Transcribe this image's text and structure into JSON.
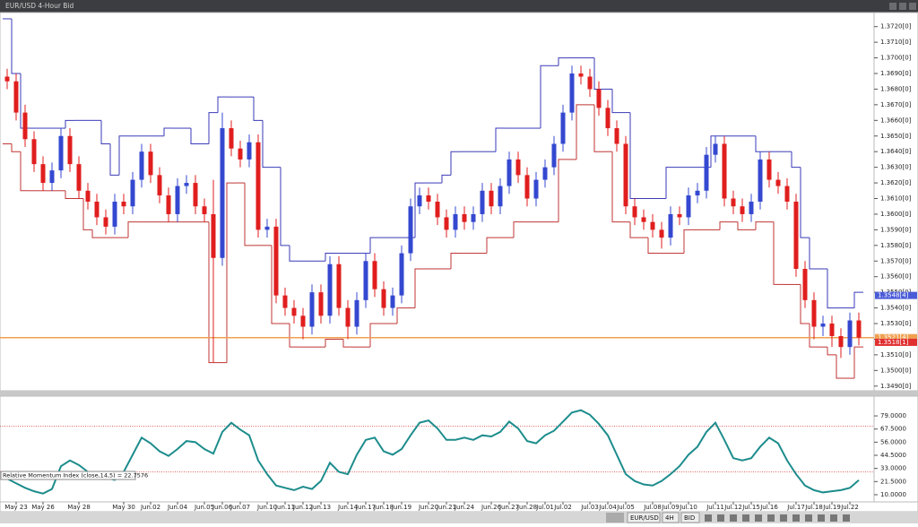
{
  "window_title": "EUR/USD 4-Hour Bid",
  "toolbar": [
    "EUR/USD",
    "4H",
    "BID"
  ],
  "chart_data": [
    {
      "type": "candlestick",
      "categories": [
        null,
        "May 23",
        null,
        null,
        "May 26",
        null,
        null,
        null,
        "May 28",
        null,
        null,
        null,
        null,
        "May 30",
        null,
        null,
        "Jun.02",
        null,
        null,
        "Jun.04",
        null,
        null,
        "Jun.05",
        null,
        "Jun.06",
        null,
        "Jun.07",
        null,
        null,
        "Jun.10",
        null,
        "Jun.11",
        null,
        "Jun.12",
        null,
        "Jun.13",
        null,
        null,
        "Jun.14",
        null,
        "Jun.17",
        null,
        "Jun.18",
        null,
        "Jun.19",
        null,
        null,
        "Jun.20",
        null,
        "Jun.21",
        null,
        "Jun.24",
        null,
        null,
        "Jun.26",
        null,
        "Jun.27",
        null,
        "Jun.28",
        null,
        "Jul.01",
        null,
        "Jul.02",
        null,
        null,
        "Jul.03",
        null,
        "Jul.04",
        null,
        "Jul.05",
        null,
        null,
        "Jul.08",
        null,
        "Jul.09",
        null,
        "Jul.10",
        null,
        null,
        "Jul.11",
        null,
        "Jul.12",
        null,
        "Jul.15",
        null,
        "Jul.16",
        null,
        null,
        "Jul.17",
        null,
        "Jul.18",
        null,
        "Jul.19",
        null,
        "Jul.22",
        null
      ],
      "open": [
        1.3688,
        1.3685,
        1.3665,
        1.3648,
        1.3632,
        1.362,
        1.3628,
        1.365,
        1.3632,
        1.3615,
        1.3608,
        1.3598,
        1.3592,
        1.3608,
        1.3605,
        1.3622,
        1.364,
        1.3625,
        1.3612,
        1.36,
        1.3618,
        1.362,
        1.3605,
        1.36,
        1.3572,
        1.3655,
        1.3642,
        1.3635,
        1.3646,
        1.359,
        1.3592,
        1.3548,
        1.354,
        1.3535,
        1.3528,
        1.355,
        1.3535,
        1.3568,
        1.354,
        1.3528,
        1.3545,
        1.357,
        1.3552,
        1.354,
        1.3548,
        1.3575,
        1.3605,
        1.3612,
        1.3608,
        1.3598,
        1.359,
        1.36,
        1.3595,
        1.36,
        1.3615,
        1.3605,
        1.3618,
        1.3635,
        1.3625,
        1.361,
        1.3622,
        1.363,
        1.3645,
        1.3665,
        1.369,
        1.3688,
        1.368,
        1.3668,
        1.3655,
        1.3645,
        1.3605,
        1.3598,
        1.3595,
        1.359,
        1.3585,
        1.36,
        1.3598,
        1.3612,
        1.3615,
        1.3638,
        1.3645,
        1.361,
        1.3605,
        1.36,
        1.3608,
        1.3635,
        1.3622,
        1.3618,
        1.3608,
        1.3565,
        1.3545,
        1.3528,
        1.353,
        1.3522,
        1.3515,
        1.3532
      ],
      "high": [
        1.3693,
        1.369,
        1.367,
        1.3653,
        1.3637,
        1.3633,
        1.3655,
        1.3655,
        1.3637,
        1.362,
        1.3613,
        1.3603,
        1.3613,
        1.3613,
        1.3627,
        1.3645,
        1.3645,
        1.363,
        1.3617,
        1.3623,
        1.3625,
        1.3625,
        1.361,
        1.3622,
        1.3665,
        1.366,
        1.3647,
        1.3651,
        1.3651,
        1.3597,
        1.3597,
        1.3553,
        1.3545,
        1.354,
        1.3555,
        1.3555,
        1.3573,
        1.3573,
        1.3545,
        1.355,
        1.3575,
        1.3575,
        1.3557,
        1.3553,
        1.358,
        1.361,
        1.3617,
        1.3617,
        1.3613,
        1.3603,
        1.3605,
        1.3605,
        1.3605,
        1.362,
        1.362,
        1.3623,
        1.364,
        1.364,
        1.363,
        1.3627,
        1.3635,
        1.365,
        1.367,
        1.3695,
        1.3695,
        1.3693,
        1.3685,
        1.3673,
        1.366,
        1.365,
        1.361,
        1.3603,
        1.36,
        1.3595,
        1.3605,
        1.3605,
        1.3617,
        1.362,
        1.3643,
        1.365,
        1.365,
        1.3615,
        1.361,
        1.3613,
        1.364,
        1.364,
        1.3627,
        1.3623,
        1.3613,
        1.357,
        1.355,
        1.3535,
        1.3535,
        1.3527,
        1.3537,
        1.3537
      ],
      "low": [
        1.368,
        1.366,
        1.3643,
        1.3627,
        1.3615,
        1.3615,
        1.3623,
        1.3627,
        1.361,
        1.3603,
        1.3593,
        1.3587,
        1.3587,
        1.36,
        1.36,
        1.3617,
        1.362,
        1.3607,
        1.3595,
        1.3595,
        1.3613,
        1.36,
        1.3595,
        1.3505,
        1.3567,
        1.3637,
        1.363,
        1.363,
        1.3585,
        1.3585,
        1.3543,
        1.3535,
        1.353,
        1.352,
        1.3523,
        1.353,
        1.353,
        1.3535,
        1.352,
        1.3523,
        1.354,
        1.3547,
        1.3535,
        1.3535,
        1.3543,
        1.357,
        1.36,
        1.3603,
        1.3593,
        1.3585,
        1.3585,
        1.359,
        1.359,
        1.3595,
        1.36,
        1.36,
        1.3613,
        1.362,
        1.3605,
        1.3605,
        1.3617,
        1.3625,
        1.364,
        1.366,
        1.3683,
        1.3675,
        1.3663,
        1.365,
        1.364,
        1.36,
        1.3593,
        1.359,
        1.3585,
        1.3578,
        1.358,
        1.3593,
        1.3593,
        1.3607,
        1.361,
        1.3633,
        1.3605,
        1.36,
        1.3595,
        1.3595,
        1.3603,
        1.3617,
        1.3613,
        1.3603,
        1.356,
        1.354,
        1.352,
        1.3522,
        1.3515,
        1.3508,
        1.351,
        1.3516
      ],
      "close": [
        1.3685,
        1.3665,
        1.3648,
        1.3632,
        1.362,
        1.3628,
        1.365,
        1.3632,
        1.3615,
        1.3608,
        1.3598,
        1.3592,
        1.3608,
        1.3605,
        1.3622,
        1.364,
        1.3625,
        1.3612,
        1.36,
        1.3618,
        1.362,
        1.3605,
        1.36,
        1.3572,
        1.3655,
        1.3642,
        1.3635,
        1.3646,
        1.359,
        1.3592,
        1.3548,
        1.354,
        1.3535,
        1.3528,
        1.355,
        1.3535,
        1.3568,
        1.354,
        1.3528,
        1.3545,
        1.357,
        1.3552,
        1.354,
        1.3548,
        1.3575,
        1.3605,
        1.3612,
        1.3608,
        1.3598,
        1.359,
        1.36,
        1.3595,
        1.36,
        1.3615,
        1.3605,
        1.3618,
        1.3635,
        1.3625,
        1.361,
        1.3622,
        1.363,
        1.3645,
        1.3665,
        1.369,
        1.3688,
        1.368,
        1.3668,
        1.3655,
        1.3645,
        1.3605,
        1.3598,
        1.3595,
        1.359,
        1.3585,
        1.36,
        1.3598,
        1.3612,
        1.3615,
        1.3638,
        1.3645,
        1.361,
        1.3605,
        1.36,
        1.3608,
        1.3635,
        1.3622,
        1.3618,
        1.3608,
        1.3565,
        1.3545,
        1.3528,
        1.353,
        1.3522,
        1.3515,
        1.3532,
        1.3521
      ],
      "up_color": "#3448d0",
      "down_color": "#e01e1e",
      "channel": {
        "upper": [
          1.3725,
          1.369,
          1.3655,
          1.3655,
          1.3655,
          1.3655,
          1.3655,
          1.366,
          1.366,
          1.366,
          1.366,
          1.3645,
          1.3625,
          1.365,
          1.365,
          1.365,
          1.365,
          1.365,
          1.3655,
          1.3655,
          1.3655,
          1.3645,
          1.3645,
          1.3665,
          1.3675,
          1.3675,
          1.3675,
          1.3675,
          1.366,
          1.363,
          1.363,
          1.358,
          1.357,
          1.357,
          1.357,
          1.357,
          1.3575,
          1.3575,
          1.3575,
          1.3575,
          1.3575,
          1.3585,
          1.3585,
          1.3585,
          1.3585,
          1.3585,
          1.362,
          1.362,
          1.362,
          1.3625,
          1.364,
          1.364,
          1.364,
          1.364,
          1.364,
          1.3655,
          1.3655,
          1.3655,
          1.3655,
          1.3655,
          1.3695,
          1.3695,
          1.37,
          1.37,
          1.37,
          1.37,
          1.368,
          1.368,
          1.3665,
          1.3665,
          1.361,
          1.361,
          1.361,
          1.361,
          1.363,
          1.363,
          1.363,
          1.363,
          1.363,
          1.365,
          1.365,
          1.365,
          1.365,
          1.365,
          1.364,
          1.364,
          1.364,
          1.364,
          1.363,
          1.3585,
          1.3565,
          1.3565,
          1.354,
          1.354,
          1.354,
          1.355
        ],
        "lower": [
          1.3645,
          1.364,
          1.3615,
          1.3615,
          1.3615,
          1.3615,
          1.3615,
          1.361,
          1.361,
          1.359,
          1.3585,
          1.3585,
          1.3585,
          1.3585,
          1.3595,
          1.3595,
          1.3595,
          1.3595,
          1.3595,
          1.3595,
          1.3595,
          1.3595,
          1.3595,
          1.3505,
          1.3505,
          1.362,
          1.362,
          1.358,
          1.358,
          1.358,
          1.353,
          1.353,
          1.3515,
          1.3515,
          1.3515,
          1.3515,
          1.352,
          1.352,
          1.3515,
          1.3515,
          1.3515,
          1.353,
          1.353,
          1.353,
          1.354,
          1.354,
          1.3565,
          1.3565,
          1.3565,
          1.3565,
          1.3575,
          1.3575,
          1.3575,
          1.3575,
          1.3585,
          1.3585,
          1.3585,
          1.3595,
          1.3595,
          1.3595,
          1.3595,
          1.3595,
          1.3635,
          1.3635,
          1.367,
          1.367,
          1.364,
          1.364,
          1.3595,
          1.3595,
          1.3585,
          1.3585,
          1.3575,
          1.3575,
          1.3575,
          1.3575,
          1.359,
          1.359,
          1.359,
          1.359,
          1.3595,
          1.3595,
          1.359,
          1.359,
          1.3595,
          1.3595,
          1.3555,
          1.3555,
          1.3555,
          1.353,
          1.3515,
          1.3515,
          1.351,
          1.3495,
          1.3495,
          1.3515
        ],
        "upper_color": "#3a3ab8",
        "lower_color": "#c03434"
      },
      "price_markers": [
        {
          "value": 1.3548,
          "label": "1.3548[4]",
          "color": "#4a5bd8"
        },
        {
          "value": 1.3521,
          "label": "1.3521[4]",
          "color": "#f0a050",
          "line": true
        },
        {
          "value": 1.3518,
          "label": "1.3518[1]",
          "color": "#e03030"
        }
      ],
      "ylim": [
        1.3487,
        1.3729
      ],
      "yticks": [
        {
          "value": 1.349,
          "label": "1.3490[0]"
        },
        {
          "value": 1.35,
          "label": "1.3500[0]"
        },
        {
          "value": 1.351,
          "label": "1.3510[0]"
        },
        {
          "value": 1.352,
          "label": "1.3520[0]"
        },
        {
          "value": 1.353,
          "label": "1.3530[0]"
        },
        {
          "value": 1.354,
          "label": "1.3540[0]"
        },
        {
          "value": 1.355,
          "label": "1.3550[0]"
        },
        {
          "value": 1.356,
          "label": "1.3560[0]"
        },
        {
          "value": 1.357,
          "label": "1.3570[0]"
        },
        {
          "value": 1.358,
          "label": "1.3580[0]"
        },
        {
          "value": 1.359,
          "label": "1.3590[0]"
        },
        {
          "value": 1.36,
          "label": "1.3600[0]"
        },
        {
          "value": 1.361,
          "label": "1.3610[0]"
        },
        {
          "value": 1.362,
          "label": "1.3620[0]"
        },
        {
          "value": 1.363,
          "label": "1.3630[0]"
        },
        {
          "value": 1.364,
          "label": "1.3640[0]"
        },
        {
          "value": 1.365,
          "label": "1.3650[0]"
        },
        {
          "value": 1.366,
          "label": "1.3660[0]"
        },
        {
          "value": 1.367,
          "label": "1.3670[0]"
        },
        {
          "value": 1.368,
          "label": "1.3680[0]"
        },
        {
          "value": 1.369,
          "label": "1.3690[0]"
        },
        {
          "value": 1.37,
          "label": "1.3700[0]"
        },
        {
          "value": 1.371,
          "label": "1.3710[0]"
        },
        {
          "value": 1.372,
          "label": "1.3720[0]"
        }
      ]
    },
    {
      "type": "line",
      "title": "Relative Momentum Index (close,14,5) = 22.7576",
      "values": [
        24,
        20,
        16,
        13,
        11,
        15,
        35,
        40,
        36,
        30,
        28,
        25,
        23,
        30,
        45,
        60,
        55,
        48,
        44,
        50,
        57,
        56,
        50,
        46,
        65,
        73,
        67,
        62,
        40,
        28,
        18,
        16,
        14,
        17,
        15,
        22,
        38,
        30,
        28,
        45,
        58,
        60,
        48,
        45,
        50,
        62,
        73,
        75,
        68,
        58,
        58,
        60,
        58,
        62,
        61,
        65,
        74,
        68,
        57,
        55,
        62,
        66,
        74,
        82,
        84,
        80,
        72,
        62,
        45,
        28,
        22,
        19,
        18,
        22,
        28,
        35,
        45,
        52,
        65,
        73,
        58,
        42,
        40,
        42,
        52,
        60,
        55,
        40,
        28,
        18,
        14,
        12,
        13,
        14,
        16,
        22.7576
      ],
      "color": "#1d8c8c",
      "levels": [
        30,
        70
      ],
      "level_color": "#e06060",
      "ylim": [
        3.7,
        96.3
      ],
      "yticks": [
        {
          "value": 10,
          "label": "10.0000"
        },
        {
          "value": 21.5,
          "label": "21.5000"
        },
        {
          "value": 33,
          "label": "33.0000"
        },
        {
          "value": 44.5,
          "label": "44.5000"
        },
        {
          "value": 56,
          "label": "56.0000"
        },
        {
          "value": 67.5,
          "label": "67.5000"
        },
        {
          "value": 79,
          "label": "79.0000"
        }
      ]
    }
  ]
}
